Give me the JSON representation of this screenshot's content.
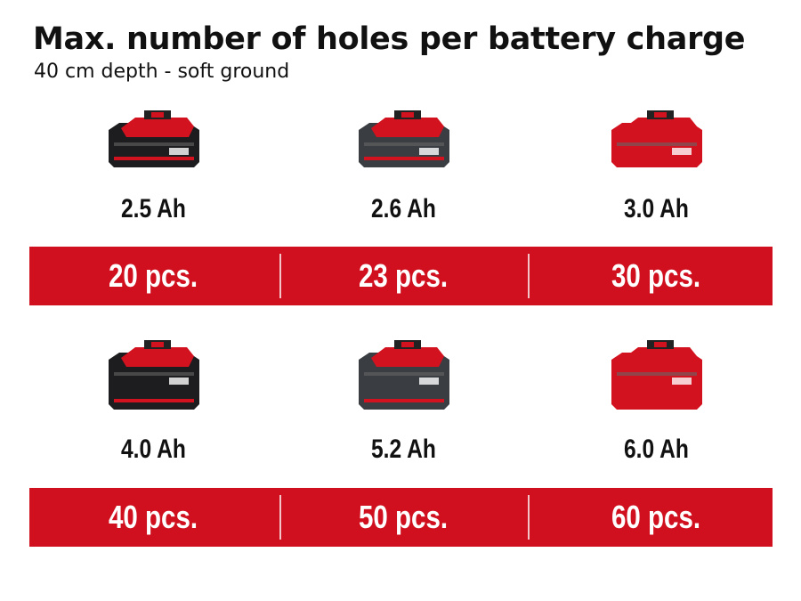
{
  "title": "Max. number of holes per battery charge",
  "subtitle": "40 cm depth - soft ground",
  "accent_color": "#d0101f",
  "rows": [
    {
      "items": [
        {
          "capacity": "2.5 Ah",
          "count": "20 pcs.",
          "icon": "battery-2-5ah-icon",
          "body_color": "#1d1d1f"
        },
        {
          "capacity": "2.6 Ah",
          "count": "23 pcs.",
          "icon": "battery-2-6ah-icon",
          "body_color": "#3a3d42"
        },
        {
          "capacity": "3.0 Ah",
          "count": "30 pcs.",
          "icon": "battery-3-0ah-icon",
          "body_color": "#d3121f"
        }
      ]
    },
    {
      "items": [
        {
          "capacity": "4.0 Ah",
          "count": "40 pcs.",
          "icon": "battery-4-0ah-icon",
          "body_color": "#1d1d1f"
        },
        {
          "capacity": "5.2 Ah",
          "count": "50 pcs.",
          "icon": "battery-5-2ah-icon",
          "body_color": "#3a3d42"
        },
        {
          "capacity": "6.0 Ah",
          "count": "60 pcs.",
          "icon": "battery-6-0ah-icon",
          "body_color": "#d3121f"
        }
      ]
    }
  ]
}
